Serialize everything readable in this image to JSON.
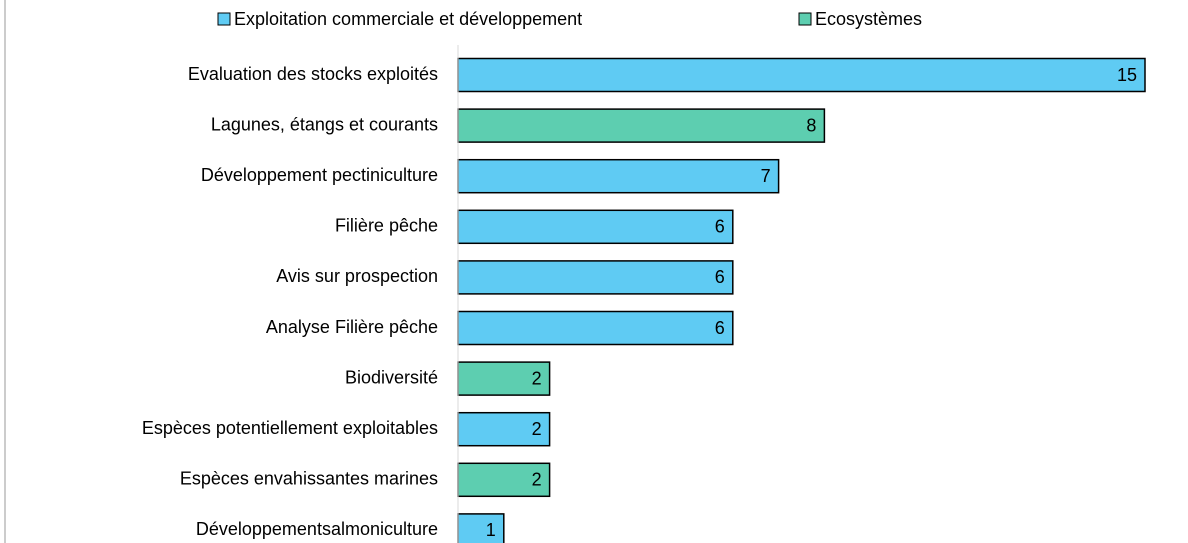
{
  "chart_data": {
    "type": "bar",
    "orientation": "horizontal",
    "categories": [
      "Evaluation des stocks exploités",
      "Lagunes, étangs et courants",
      "Développement pectiniculture",
      "Filière pêche",
      "Avis sur prospection",
      "Analyse Filière pêche",
      "Biodiversité",
      "Espèces potentiellement exploitables",
      "Espèces envahissantes marines",
      "Développementsalmoniculture"
    ],
    "series": [
      {
        "name": "Exploitation commerciale et développement",
        "color": "#5fcbf3",
        "values": [
          15,
          null,
          7,
          6,
          6,
          6,
          null,
          2,
          null,
          1
        ]
      },
      {
        "name": "Ecosystèmes",
        "color": "#5dceb0",
        "values": [
          null,
          8,
          null,
          null,
          null,
          null,
          2,
          null,
          2,
          null
        ]
      }
    ],
    "xlim": [
      0,
      15
    ],
    "legend": "top"
  }
}
